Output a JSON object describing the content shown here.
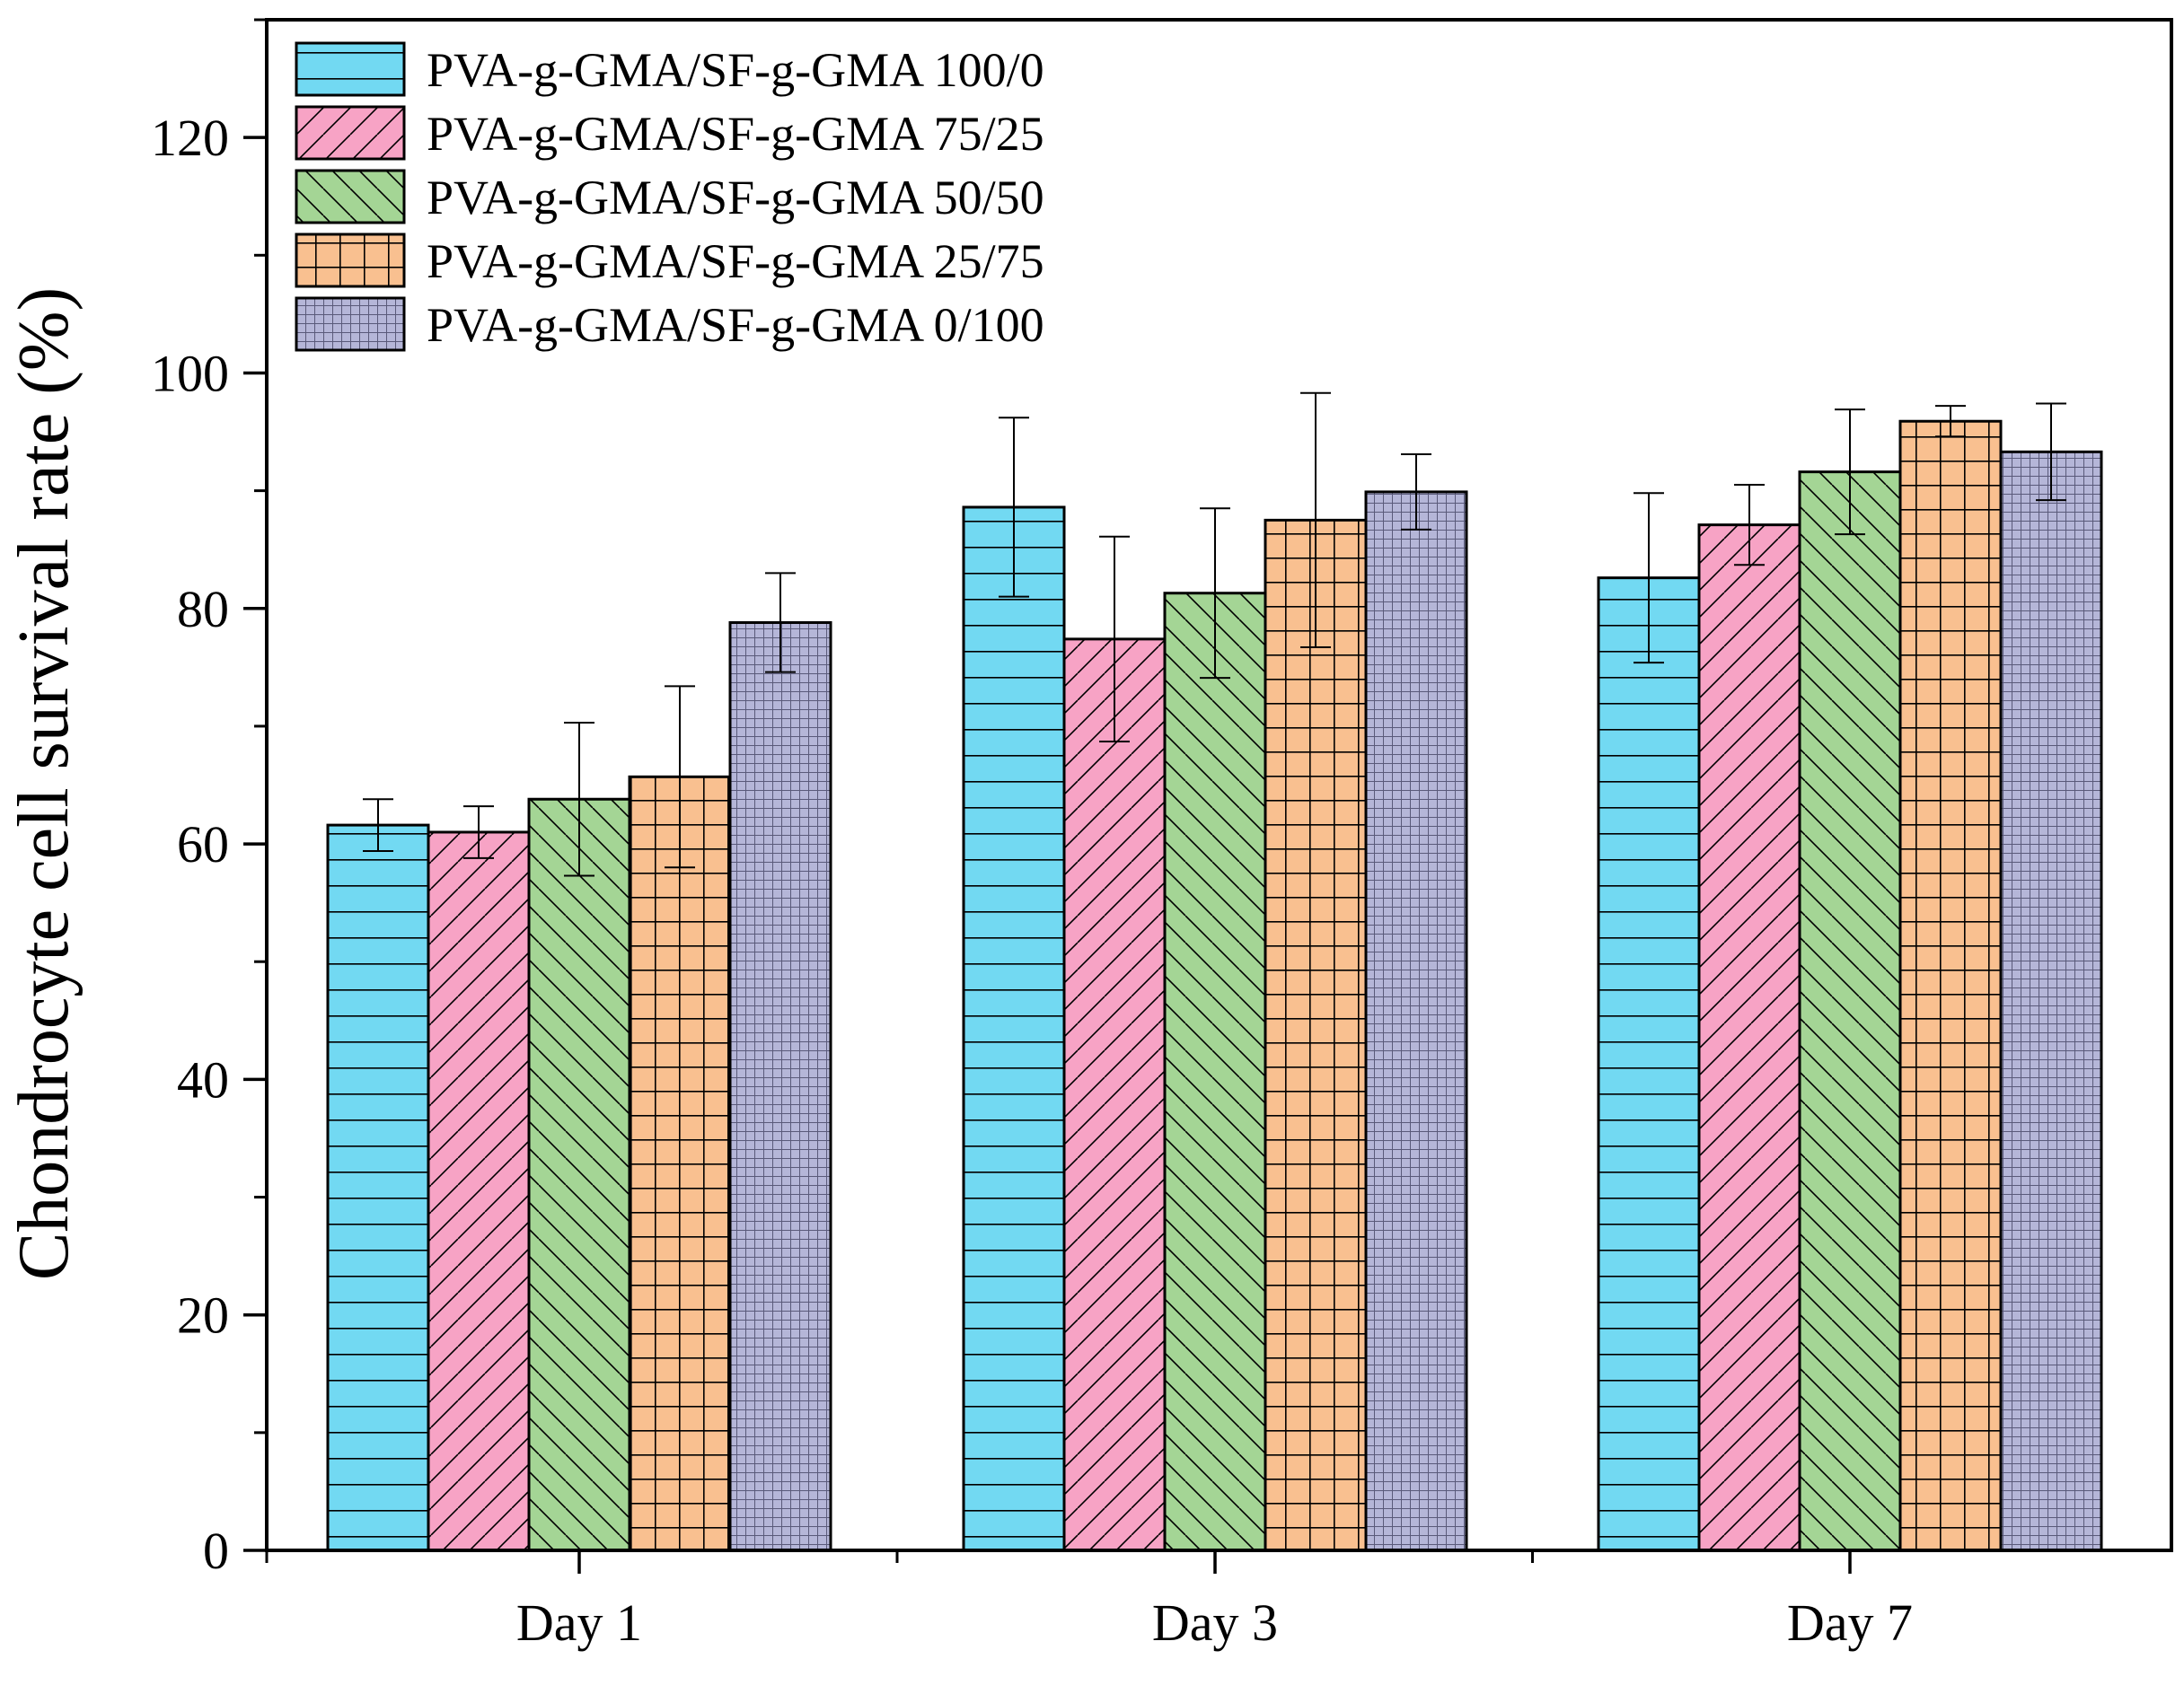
{
  "chart_data": {
    "type": "bar",
    "ylabel": "Chondrocyte cell survival rate (%)",
    "xlabel": "",
    "ylim": [
      0,
      130
    ],
    "yticks": [
      0,
      20,
      40,
      60,
      80,
      100,
      120
    ],
    "ytick_labels": [
      "0",
      "20",
      "40",
      "60",
      "80",
      "100",
      "120"
    ],
    "categories": [
      "Day 1",
      "Day 3",
      "Day 7"
    ],
    "legend_position": "top-left",
    "grid": false,
    "error_bars": true,
    "series": [
      {
        "name": "PVA-g-GMA/SF-g-GMA 100/0",
        "values": [
          61.6,
          88.6,
          82.6
        ],
        "errors": [
          2.2,
          7.6,
          7.2
        ],
        "color": "#72d9f2",
        "pattern": "horizontal"
      },
      {
        "name": "PVA-g-GMA/SF-g-GMA 75/25",
        "values": [
          61.0,
          77.4,
          87.1
        ],
        "errors": [
          2.2,
          8.7,
          3.4
        ],
        "color": "#f7a3c5",
        "pattern": "forward-diagonal"
      },
      {
        "name": "PVA-g-GMA/SF-g-GMA 50/50",
        "values": [
          63.8,
          81.3,
          91.6
        ],
        "errors": [
          6.5,
          7.2,
          5.3
        ],
        "color": "#a4d595",
        "pattern": "back-diagonal"
      },
      {
        "name": "PVA-g-GMA/SF-g-GMA 25/75",
        "values": [
          65.7,
          87.5,
          95.9
        ],
        "errors": [
          7.7,
          10.8,
          1.3
        ],
        "color": "#f9c090",
        "pattern": "grid"
      },
      {
        "name": "PVA-g-GMA/SF-g-GMA 0/100",
        "values": [
          78.8,
          89.9,
          93.3
        ],
        "errors": [
          4.2,
          3.2,
          4.1
        ],
        "color": "#b5b6d8",
        "pattern": "fine-grid"
      }
    ]
  }
}
